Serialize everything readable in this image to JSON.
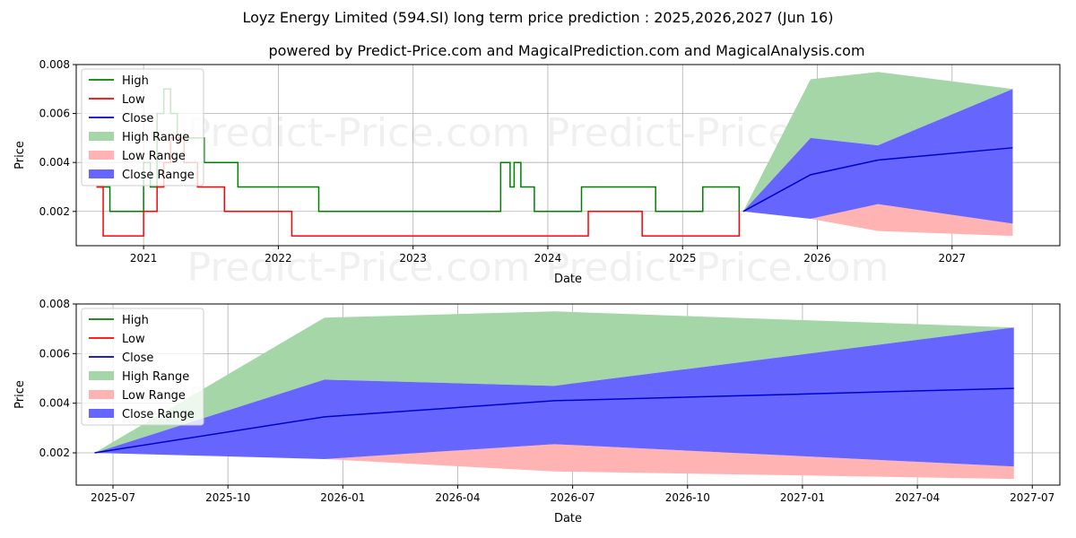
{
  "title": "Loyz Energy Limited (594.SI) long term price prediction : 2025,2026,2027 (Jun 16)",
  "subtitle": "powered by Predict-Price.com and MagicalPrediction.com and MagicalAnalysis.com",
  "watermark": "Predict-Price.com",
  "colors": {
    "high": "#008000",
    "low": "#ff0000",
    "close": "#0000cd",
    "high_range": "#a5d6a7",
    "low_range": "#ffb3b3",
    "close_range": "#6666ff"
  },
  "chart_data": [
    {
      "type": "line",
      "panel": "history",
      "xlabel": "Date",
      "ylabel": "Price",
      "xlim": [
        2020.5,
        2027.8
      ],
      "ylim": [
        0.0006,
        0.008
      ],
      "x_ticks": [
        2021,
        2022,
        2023,
        2024,
        2025,
        2026,
        2027
      ],
      "x_tick_labels": [
        "2021",
        "2022",
        "2023",
        "2024",
        "2025",
        "2026",
        "2027"
      ],
      "y_ticks": [
        0.002,
        0.004,
        0.006,
        0.008
      ],
      "y_tick_labels": [
        "0.002",
        "0.004",
        "0.006",
        "0.008"
      ],
      "grid": true,
      "legend": [
        "High",
        "Low",
        "Close",
        "High Range",
        "Low Range",
        "Close Range"
      ],
      "legend_position": "upper-left",
      "series": [
        {
          "name": "High",
          "x": [
            2020.65,
            2020.75,
            2020.95,
            2021.0,
            2021.05,
            2021.1,
            2021.15,
            2021.2,
            2021.25,
            2021.3,
            2021.35,
            2021.45,
            2021.5,
            2021.6,
            2021.7,
            2021.8,
            2021.95,
            2022.1,
            2022.2,
            2022.3,
            2022.5,
            2022.7,
            2022.9,
            2023.1,
            2023.3,
            2023.5,
            2023.62,
            2023.65,
            2023.72,
            2023.75,
            2023.8,
            2023.9,
            2024.1,
            2024.25,
            2024.3,
            2024.4,
            2024.55,
            2024.7,
            2024.8,
            2024.9,
            2025.1,
            2025.15,
            2025.25,
            2025.3,
            2025.35,
            2025.42
          ],
          "values": [
            0.003,
            0.002,
            0.002,
            0.004,
            0.003,
            0.006,
            0.007,
            0.006,
            0.005,
            0.005,
            0.005,
            0.004,
            0.004,
            0.004,
            0.003,
            0.003,
            0.003,
            0.003,
            0.003,
            0.002,
            0.002,
            0.002,
            0.002,
            0.002,
            0.002,
            0.002,
            0.002,
            0.004,
            0.003,
            0.004,
            0.003,
            0.002,
            0.002,
            0.003,
            0.003,
            0.003,
            0.003,
            0.003,
            0.002,
            0.002,
            0.002,
            0.003,
            0.003,
            0.003,
            0.003,
            0.002
          ]
        },
        {
          "name": "Low",
          "x": [
            2020.65,
            2020.7,
            2020.8,
            2020.9,
            2021.0,
            2021.1,
            2021.15,
            2021.2,
            2021.3,
            2021.4,
            2021.5,
            2021.6,
            2021.8,
            2022.0,
            2022.1,
            2022.3,
            2022.5,
            2022.7,
            2022.9,
            2023.1,
            2023.3,
            2023.5,
            2023.7,
            2023.9,
            2024.1,
            2024.3,
            2024.5,
            2024.7,
            2024.9,
            2025.1,
            2025.25,
            2025.42
          ],
          "values": [
            0.003,
            0.001,
            0.001,
            0.001,
            0.002,
            0.003,
            0.004,
            0.005,
            0.004,
            0.003,
            0.003,
            0.002,
            0.002,
            0.002,
            0.001,
            0.001,
            0.001,
            0.001,
            0.001,
            0.001,
            0.001,
            0.001,
            0.001,
            0.001,
            0.001,
            0.002,
            0.002,
            0.001,
            0.001,
            0.001,
            0.001,
            0.002
          ]
        },
        {
          "name": "Close",
          "x": [
            2025.45,
            2025.95,
            2026.45,
            2027.45
          ],
          "values": [
            0.002,
            0.0035,
            0.0041,
            0.0046
          ]
        },
        {
          "name": "High Range",
          "x": [
            2025.45,
            2025.95,
            2026.45,
            2027.45
          ],
          "upper": [
            0.002,
            0.0074,
            0.0077,
            0.007
          ],
          "lower": [
            0.002,
            0.005,
            0.0047,
            0.007
          ]
        },
        {
          "name": "Low Range",
          "x": [
            2025.45,
            2025.95,
            2026.45,
            2027.45
          ],
          "upper": [
            0.002,
            0.0017,
            0.0023,
            0.0015
          ],
          "lower": [
            0.002,
            0.0017,
            0.0012,
            0.001
          ]
        },
        {
          "name": "Close Range",
          "x": [
            2025.45,
            2025.95,
            2026.45,
            2027.45
          ],
          "upper": [
            0.002,
            0.005,
            0.0047,
            0.007
          ],
          "lower": [
            0.002,
            0.0017,
            0.0023,
            0.0015
          ]
        }
      ]
    },
    {
      "type": "area",
      "panel": "forecast",
      "xlabel": "Date",
      "ylabel": "Price",
      "xlim": [
        2025.42,
        2027.56
      ],
      "ylim": [
        0.0007,
        0.008
      ],
      "x_ticks": [
        2025.5,
        2025.75,
        2026.0,
        2026.25,
        2026.5,
        2026.75,
        2027.0,
        2027.25,
        2027.5
      ],
      "x_tick_labels": [
        "2025-07",
        "2025-10",
        "2026-01",
        "2026-04",
        "2026-07",
        "2026-10",
        "2027-01",
        "2027-04",
        "2027-07"
      ],
      "y_ticks": [
        0.002,
        0.004,
        0.006,
        0.008
      ],
      "y_tick_labels": [
        "0.002",
        "0.004",
        "0.006",
        "0.008"
      ],
      "grid": true,
      "legend": [
        "High",
        "Low",
        "Close",
        "High Range",
        "Low Range",
        "Close Range"
      ],
      "legend_position": "upper-left",
      "series": [
        {
          "name": "Close",
          "x": [
            2025.46,
            2025.96,
            2026.46,
            2027.46
          ],
          "values": [
            0.002,
            0.00345,
            0.0041,
            0.0046
          ]
        },
        {
          "name": "High Range",
          "x": [
            2025.46,
            2025.96,
            2026.46,
            2027.46
          ],
          "upper": [
            0.002,
            0.00745,
            0.0077,
            0.00705
          ],
          "lower": [
            0.002,
            0.00495,
            0.0047,
            0.00705
          ]
        },
        {
          "name": "Low Range",
          "x": [
            2025.46,
            2025.96,
            2026.46,
            2027.46
          ],
          "upper": [
            0.002,
            0.00175,
            0.00235,
            0.00145
          ],
          "lower": [
            0.002,
            0.00175,
            0.00125,
            0.00095
          ]
        },
        {
          "name": "Close Range",
          "x": [
            2025.46,
            2025.96,
            2026.46,
            2027.46
          ],
          "upper": [
            0.002,
            0.00495,
            0.0047,
            0.00705
          ],
          "lower": [
            0.002,
            0.00175,
            0.00235,
            0.00145
          ]
        }
      ]
    }
  ]
}
